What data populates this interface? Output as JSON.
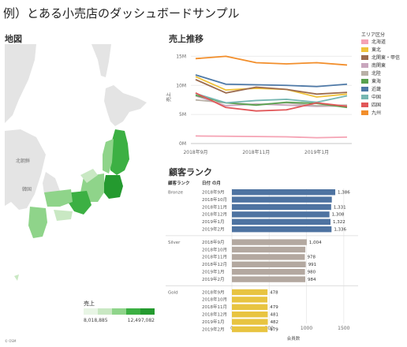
{
  "page_title": "例）とある小売店のダッシュボードサンプル",
  "map": {
    "title": "地図",
    "labels": {
      "korea": "韓国",
      "north_korea": "北朝鮮"
    },
    "legend_title": "売上",
    "legend_min": "8,018,885",
    "legend_max": "12,497,082",
    "attribution": "© OSM",
    "colors": {
      "land": "#e4e4e4",
      "sea": "#ffffff",
      "low": "#c9e8c3",
      "mid": "#8fd48a",
      "high": "#3cb043",
      "top": "#249a2f"
    }
  },
  "sales_chart": {
    "title": "売上推移",
    "legend_title": "エリア区分",
    "legend": [
      {
        "name": "北海道",
        "color": "#f5a3b4"
      },
      {
        "name": "東北",
        "color": "#f0c23a"
      },
      {
        "name": "北関東・甲信",
        "color": "#9c6b4e"
      },
      {
        "name": "南関東",
        "color": "#c8a6bd"
      },
      {
        "name": "北陸",
        "color": "#b9b1a7"
      },
      {
        "name": "東海",
        "color": "#59a14f"
      },
      {
        "name": "近畿",
        "color": "#4e79a7"
      },
      {
        "name": "中国",
        "color": "#76b7b2"
      },
      {
        "name": "四国",
        "color": "#e15759"
      },
      {
        "name": "九州",
        "color": "#f28e2b"
      }
    ],
    "y_axis_label": "売上",
    "y_ticks": [
      "0M",
      "5M",
      "10M",
      "15M"
    ],
    "x_ticks": [
      "2018年9月",
      "2018年11月",
      "2019年1月"
    ]
  },
  "rank_chart": {
    "title": "顧客ランク",
    "col_rank": "顧客ランク",
    "col_month": "日付 の月",
    "x_axis_label": "会員数",
    "x_ticks": [
      "0",
      "500",
      "1000",
      "1500"
    ],
    "months": [
      "2018年9月",
      "2018年10月",
      "2018年11月",
      "2018年12月",
      "2019年1月",
      "2019年2月"
    ],
    "groups": [
      {
        "name": "Bronze",
        "color": "#4e73a1",
        "labels": [
          "1,386",
          "",
          "1,331",
          "1,308",
          "1,322",
          "1,336"
        ]
      },
      {
        "name": "Silver",
        "color": "#b3a8a0",
        "labels": [
          "1,004",
          "",
          "978",
          "991",
          "980",
          "984"
        ]
      },
      {
        "name": "Gold",
        "color": "#e8c441",
        "labels": [
          "478",
          "",
          "479",
          "481",
          "482",
          "479"
        ]
      }
    ]
  },
  "chart_data": [
    {
      "type": "line",
      "title": "売上推移",
      "ylabel": "売上",
      "ylim": [
        0,
        16000000
      ],
      "x": [
        "2018年9月",
        "2018年10月",
        "2018年11月",
        "2018年12月",
        "2019年1月",
        "2019年2月"
      ],
      "series": [
        {
          "name": "北海道",
          "values": [
            1300000,
            1250000,
            1200000,
            1150000,
            1000000,
            1100000
          ]
        },
        {
          "name": "東北",
          "values": [
            11500000,
            9200000,
            9500000,
            9300000,
            8000000,
            8500000
          ]
        },
        {
          "name": "北関東・甲信",
          "values": [
            11000000,
            8700000,
            9700000,
            9300000,
            8500000,
            8800000
          ]
        },
        {
          "name": "南関東",
          "values": [
            8200000,
            6500000,
            6800000,
            6600000,
            6400000,
            6500000
          ]
        },
        {
          "name": "北陸",
          "values": [
            7500000,
            7000000,
            6700000,
            7000000,
            6500000,
            6600000
          ]
        },
        {
          "name": "東海",
          "values": [
            8300000,
            7000000,
            6600000,
            7100000,
            6900000,
            6200000
          ]
        },
        {
          "name": "近畿",
          "values": [
            11800000,
            10200000,
            10100000,
            10000000,
            9800000,
            10200000
          ]
        },
        {
          "name": "中国",
          "values": [
            8600000,
            7000000,
            7400000,
            7600000,
            7100000,
            8200000
          ]
        },
        {
          "name": "四国",
          "values": [
            8700000,
            6200000,
            5600000,
            5800000,
            7000000,
            6400000
          ]
        },
        {
          "name": "九州",
          "values": [
            14600000,
            15000000,
            13900000,
            13700000,
            13900000,
            13500000
          ]
        }
      ]
    },
    {
      "type": "bar",
      "title": "顧客ランク",
      "xlabel": "会員数",
      "xlim": [
        0,
        1650
      ],
      "categories": [
        "2018年9月",
        "2018年10月",
        "2018年11月",
        "2018年12月",
        "2019年1月",
        "2019年2月"
      ],
      "series": [
        {
          "name": "Bronze",
          "values": [
            1386,
            1340,
            1331,
            1308,
            1322,
            1336
          ]
        },
        {
          "name": "Silver",
          "values": [
            1004,
            985,
            978,
            991,
            980,
            984
          ]
        },
        {
          "name": "Gold",
          "values": [
            478,
            476,
            479,
            481,
            482,
            479
          ]
        }
      ]
    }
  ]
}
